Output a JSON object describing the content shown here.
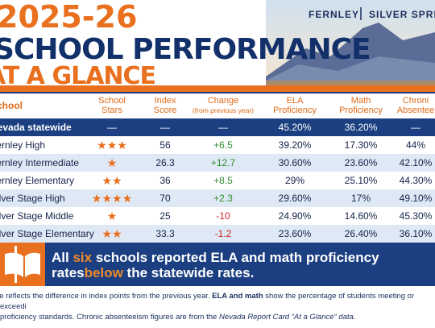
{
  "header": {
    "year": "2025-26",
    "title": "SCHOOL PERFORMANCE",
    "subtitle": "AT A GLANCE",
    "locations": [
      "FERNLEY",
      "SILVER SPRIN"
    ]
  },
  "table": {
    "columns": [
      [
        "School"
      ],
      [
        "School",
        "Stars"
      ],
      [
        "Index",
        "Score"
      ],
      [
        "Change",
        "(from previous year)"
      ],
      [
        "ELA",
        "Proficiency"
      ],
      [
        "Math",
        "Proficiency"
      ],
      [
        "Chroni",
        "Absentee"
      ]
    ],
    "rows": [
      [
        "Nevada statewide",
        "—",
        "—",
        "—",
        "45.20%",
        "36.20%",
        "—"
      ],
      [
        "Fernley High",
        3,
        "56",
        "+6.5",
        "39.20%",
        "17.30%",
        "44%"
      ],
      [
        "Fernley Intermediate",
        1,
        "26.3",
        "+12.7",
        "30.60%",
        "23.60%",
        "42.10%"
      ],
      [
        "Fernley Elementary",
        2,
        "36",
        "+8.5",
        "29%",
        "25.10%",
        "44.30%"
      ],
      [
        "Silver Stage High",
        4,
        "70",
        "+2.3",
        "29.60%",
        "17%",
        "49.10%"
      ],
      [
        "Silver Stage Middle",
        1,
        "25",
        "-10",
        "24.90%",
        "14.60%",
        "45.30%"
      ],
      [
        "Silver Stage Elementary",
        2,
        "33.3",
        "-1.2",
        "23.60%",
        "26.40%",
        "36.10%"
      ]
    ]
  },
  "banner": [
    "All ",
    "six",
    " schools reported ELA and math proficiency rates",
    "below",
    " the statewide rates."
  ],
  "footnote": [
    "ge reflects the difference in index points from the previous year. ",
    "ELA and math",
    " show the percentage of students meeting or exceedi",
    "proficiency standards. Chronic absenteeism figures are from the ",
    "Nevada Report Card “At a Glance” data."
  ]
}
